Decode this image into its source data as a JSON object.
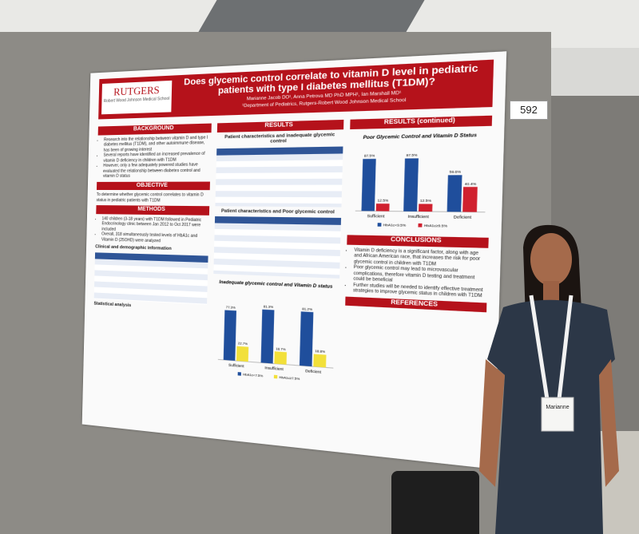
{
  "booth_number": "592",
  "poster": {
    "logo": {
      "name": "RUTGERS",
      "school": "Robert Wood Johnson Medical School"
    },
    "title": "Does glycemic control correlate to vitamin D level in pediatric patients with type I diabetes mellitus (T1DM)?",
    "authors": "Marianne Jacob DO¹, Anna Petrova MD PhD MPH¹, Ian Marshall MD¹",
    "affiliation": "¹Department of Pediatrics, Rutgers-Robert Wood Johnson Medical School",
    "background": {
      "heading": "BACKGROUND",
      "bullets": [
        "Research into the relationship between vitamin D and type I diabetes mellitus (T1DM), and other autoimmune disease, has been of growing interest",
        "Several reports have identified an increased prevalence of vitamin D deficiency in children with T1DM",
        "However, only a few adequately powered studies have evaluated the relationship between diabetes control and vitamin D status"
      ]
    },
    "objective": {
      "heading": "OBJECTIVE",
      "text": "To determine whether glycemic control correlates to vitamin D status in pediatric patients with T1DM"
    },
    "methods": {
      "heading": "METHODS",
      "bullets": [
        "140 children (3-18 years) with T1DM followed in Pediatric Endocrinology clinic between Jan 2012 to Oct 2017 were included",
        "Overall, 318 simultaneously tested levels of HbA1c and Vitamin D (25OHD) were analyzed"
      ],
      "subheading": "Clinical and demographic information",
      "stats_heading": "Statistical analysis"
    },
    "results": {
      "heading": "RESULTS",
      "table1_title": "Patient characteristics and inadequate glycemic control",
      "table2_title": "Patient characteristics and Poor glycemic control",
      "chart": {
        "type": "bar",
        "title": "Inadequate glycemic control and Vitamin D status",
        "categories": [
          "Sufficient",
          "Insufficient",
          "Deficient"
        ],
        "series": [
          {
            "name": "HbA1c<7.5%",
            "color": "#1f4e9c",
            "values": [
              77.3,
              81.3,
              81.2
            ],
            "value_labels": [
              "77.3%",
              "81.3%",
              "81.2%"
            ]
          },
          {
            "name": "HbA1c≥7.5%",
            "color": "#f2e03a",
            "values": [
              22.7,
              18.7,
              18.8
            ],
            "value_labels": [
              "22.7%",
              "18.7%",
              "18.8%"
            ]
          }
        ]
      }
    },
    "results_continued": {
      "heading": "RESULTS (continued)",
      "chart": {
        "type": "bar",
        "title": "Poor Glycemic Control and Vitamin D Status",
        "categories": [
          "Sufficient",
          "Insufficient",
          "Deficient"
        ],
        "series": [
          {
            "name": "HbA1c<9.5%",
            "color": "#1f4e9c",
            "values": [
              87.5,
              87.5,
              59.6
            ],
            "value_labels": [
              "87.5%",
              "87.5%",
              "59.6%"
            ]
          },
          {
            "name": "HbA1c≥9.5%",
            "color": "#d0202e",
            "values": [
              12.5,
              12.5,
              40.4
            ],
            "value_labels": [
              "12.5%",
              "12.5%",
              "40.4%"
            ]
          }
        ]
      }
    },
    "conclusions": {
      "heading": "CONCLUSIONS",
      "bullets": [
        "Vitamin D deficiency is a significant factor, along with age and African American race, that increases the risk for poor glycemic control in children with T1DM",
        "Poor glycemic control may lead to microvascular complications, therefore vitamin D testing and treatment could be beneficial",
        "Further studies will be needed to identify effective treatment strategies to improve glycemic status in children with T1DM"
      ]
    },
    "references": {
      "heading": "REFERENCES"
    }
  },
  "badge": {
    "name": "Marianne"
  }
}
